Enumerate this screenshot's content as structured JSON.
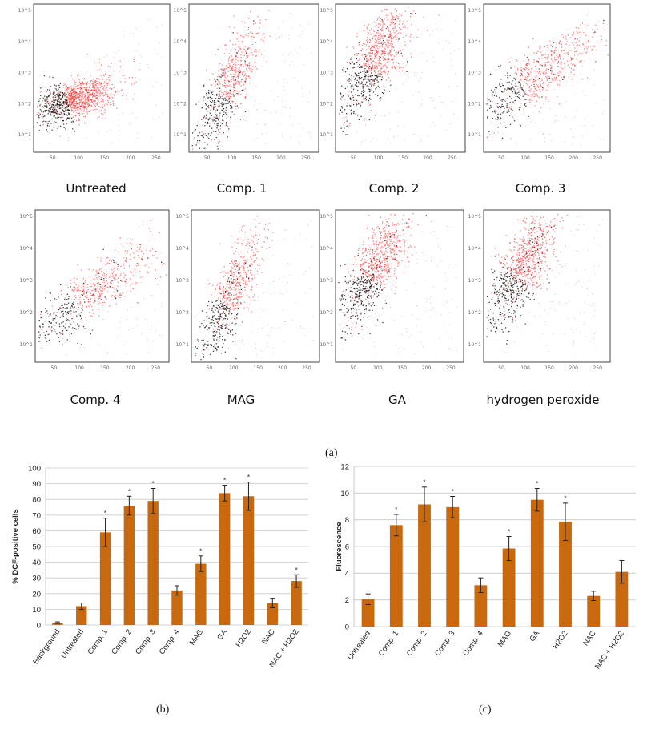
{
  "figure_caption_a": "(a)",
  "figure_caption_b": "(b)",
  "figure_caption_c": "(c)",
  "colors": {
    "bar": "#c8690f",
    "dots_black": "#111111",
    "dots_red": "#ff1a1a"
  },
  "chart_data": [
    {
      "id": "scatter-panels",
      "type": "scatter",
      "x_ticks": [
        "50",
        "100",
        "150",
        "200",
        "250"
      ],
      "y_ticks": [
        "10^1",
        "10^2",
        "10^3",
        "10^4",
        "10^5"
      ],
      "panels": [
        {
          "label": "Untreated",
          "shape": "untreated"
        },
        {
          "label": "Comp. 1",
          "shape": "steep"
        },
        {
          "label": "Comp. 2",
          "shape": "high"
        },
        {
          "label": "Comp. 3",
          "shape": "tilted"
        },
        {
          "label": "Comp. 4",
          "shape": "tilted-low"
        },
        {
          "label": "MAG",
          "shape": "steep"
        },
        {
          "label": "GA",
          "shape": "high"
        },
        {
          "label": "hydrogen peroxide",
          "shape": "high"
        }
      ]
    },
    {
      "id": "dcf-bar",
      "type": "bar",
      "title": "",
      "xlabel": "",
      "ylabel": "% DCF-positive cells",
      "ylim": [
        0,
        100
      ],
      "yticks": [
        0,
        10,
        20,
        30,
        40,
        50,
        60,
        70,
        80,
        90,
        100
      ],
      "categories": [
        "Background",
        "Untreated",
        "Comp. 1",
        "Comp. 2",
        "Comp. 3",
        "Comp. 4",
        "MAG",
        "GA",
        "H2O2",
        "NAC",
        "NAC + H2O2"
      ],
      "values": [
        1.5,
        12,
        59,
        76,
        79,
        22,
        39,
        84,
        82,
        14,
        28
      ],
      "errors": [
        0.5,
        2,
        9,
        6,
        8,
        3,
        5,
        5,
        9,
        3,
        4
      ],
      "significant": [
        false,
        false,
        true,
        true,
        true,
        false,
        true,
        true,
        true,
        false,
        true
      ],
      "sig_mark": "*"
    },
    {
      "id": "fluor-bar",
      "type": "bar",
      "title": "",
      "xlabel": "",
      "ylabel": "Fluorescence",
      "ylim": [
        0,
        12
      ],
      "yticks": [
        0,
        2,
        4,
        6,
        8,
        10,
        12
      ],
      "categories": [
        "Untreated",
        "Comp. 1",
        "Comp. 2",
        "Comp. 3",
        "Comp. 4",
        "MAG",
        "GA",
        "H2O2",
        "NAC",
        "NAC + H2O2"
      ],
      "values": [
        2.05,
        7.6,
        9.15,
        8.95,
        3.1,
        5.85,
        9.5,
        7.85,
        2.3,
        4.1
      ],
      "errors": [
        0.4,
        0.8,
        1.3,
        0.8,
        0.55,
        0.9,
        0.85,
        1.4,
        0.35,
        0.85
      ],
      "significant": [
        false,
        true,
        true,
        true,
        false,
        true,
        true,
        true,
        false,
        false
      ],
      "sig_mark": "*"
    }
  ]
}
